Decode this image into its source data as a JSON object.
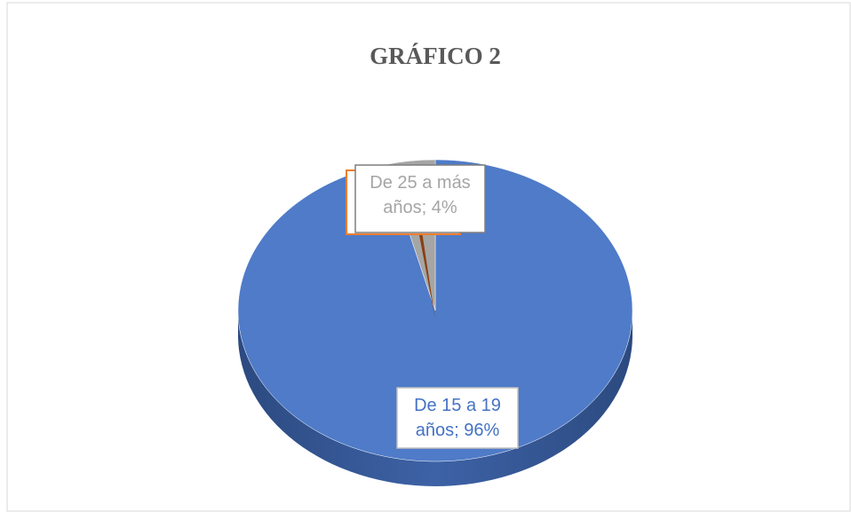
{
  "chart_data": {
    "type": "pie",
    "title": "GRÁFICO 2",
    "categories": [
      "De 15 a 19 años",
      "De 25 a más años"
    ],
    "values": [
      96,
      4
    ],
    "value_labels": [
      "De 15 a 19 años; 96%",
      "De 25 a más años; 4%"
    ],
    "colors": [
      "#4f7bc8",
      "#a5a5a5"
    ]
  }
}
